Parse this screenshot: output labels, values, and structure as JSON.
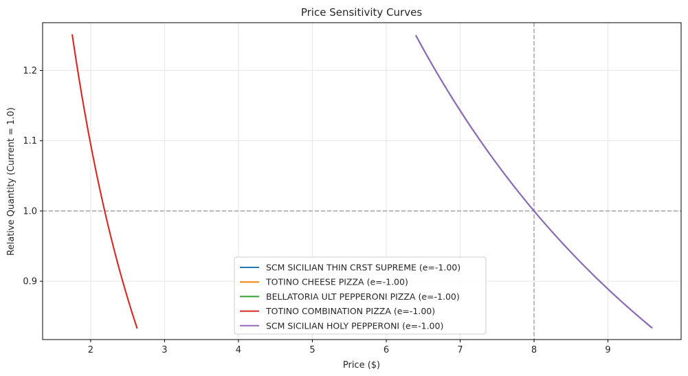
{
  "chart_data": {
    "type": "line",
    "title": "Price Sensitivity Curves",
    "xlabel": "Price ($)",
    "ylabel": "Relative Quantity (Current = 1.0)",
    "xlim": [
      1.35,
      9.99
    ],
    "ylim": [
      0.817,
      1.268
    ],
    "xticks": [
      2,
      3,
      4,
      5,
      6,
      7,
      8,
      9
    ],
    "yticks": [
      0.9,
      1.0,
      1.1,
      1.2
    ],
    "ytick_labels": [
      "0.9",
      "1.0",
      "1.1",
      "1.2"
    ],
    "grid": true,
    "legend_position": "lower center",
    "reference_lines": {
      "horizontal_y": 1.0,
      "vertical_x": 8.0,
      "color": "#aaaaaa"
    },
    "series": [
      {
        "name": "SCM SICILIAN THIN CRST SUPREME (e=-1.00)",
        "color": "#1f77b4",
        "current_price": 8.0,
        "elasticity": -1.0,
        "x_range": [
          6.4,
          9.6
        ]
      },
      {
        "name": "TOTINO CHEESE PIZZA (e=-1.00)",
        "color": "#ff7f0e",
        "current_price": 2.19,
        "elasticity": -1.0,
        "x_range": [
          1.75,
          2.63
        ]
      },
      {
        "name": "BELLATORIA ULT PEPPERONI PIZZA (e=-1.00)",
        "color": "#2ca02c",
        "current_price": 8.0,
        "elasticity": -1.0,
        "x_range": [
          6.4,
          9.6
        ]
      },
      {
        "name": "TOTINO COMBINATION PIZZA (e=-1.00)",
        "color": "#d62728",
        "current_price": 2.19,
        "elasticity": -1.0,
        "x_range": [
          1.75,
          2.63
        ]
      },
      {
        "name": "SCM SICILIAN HOLY PEPPERONI (e=-1.00)",
        "color": "#9467bd",
        "current_price": 8.0,
        "elasticity": -1.0,
        "x_range": [
          6.4,
          9.6
        ]
      }
    ]
  }
}
